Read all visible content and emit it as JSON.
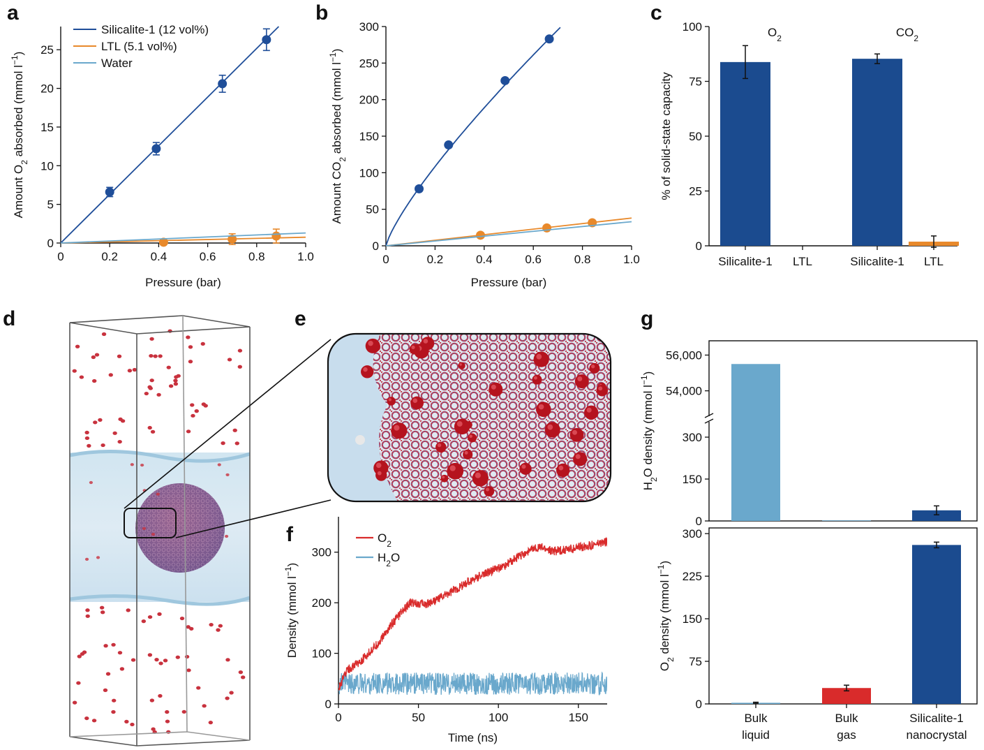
{
  "panels": {
    "a": "a",
    "b": "b",
    "c": "c",
    "d": "d",
    "e": "e",
    "f": "f",
    "g": "g"
  },
  "colors": {
    "navy": "#1f4e99",
    "orange": "#e8892b",
    "lightblue": "#6aa8cc",
    "red": "#d92b2b",
    "darkblue": "#1b4b8f"
  },
  "chart_data": [
    {
      "id": "a",
      "type": "scatter",
      "xlabel": "Pressure (bar)",
      "ylabel_parts": [
        "Amount O",
        "2",
        " absorbed (mmol l",
        "−1",
        ")"
      ],
      "xlim": [
        0,
        1.0
      ],
      "ylim": [
        0,
        28
      ],
      "xticks": [
        "0",
        "0.2",
        "0.4",
        "0.6",
        "0.8",
        "1.0"
      ],
      "yticks": [
        "0",
        "5",
        "10",
        "15",
        "20",
        "25"
      ],
      "legend_position": "top-left",
      "series": [
        {
          "name": "Silicalite-1 (12 vol%)",
          "color": "#1f4e99",
          "points": [
            {
              "x": 0.2,
              "y": 6.6,
              "err": 0.6
            },
            {
              "x": 0.39,
              "y": 12.2,
              "err": 0.8
            },
            {
              "x": 0.66,
              "y": 20.6,
              "err": 1.1
            },
            {
              "x": 0.84,
              "y": 26.3,
              "err": 1.4
            }
          ],
          "fit": [
            [
              0,
              0
            ],
            [
              0.89,
              28
            ]
          ]
        },
        {
          "name": "LTL (5.1 vol%)",
          "color": "#e8892b",
          "points": [
            {
              "x": 0.42,
              "y": 0.1,
              "err": 0.3
            },
            {
              "x": 0.7,
              "y": 0.5,
              "err": 0.7
            },
            {
              "x": 0.88,
              "y": 0.9,
              "err": 0.9
            }
          ],
          "fit": [
            [
              0,
              0
            ],
            [
              1.0,
              0.75
            ]
          ]
        },
        {
          "name": "Water",
          "color": "#6aa8cc",
          "points": [],
          "fit": [
            [
              0,
              0
            ],
            [
              1.0,
              1.3
            ]
          ]
        }
      ]
    },
    {
      "id": "b",
      "type": "scatter",
      "xlabel": "Pressure (bar)",
      "ylabel_parts": [
        "Amount CO",
        "2",
        " absorbed (mmol l",
        "−1",
        ")"
      ],
      "xlim": [
        0,
        1.0
      ],
      "ylim": [
        0,
        300
      ],
      "xticks": [
        "0",
        "0.2",
        "0.4",
        "0.6",
        "0.8",
        "1.0"
      ],
      "yticks": [
        "0",
        "50",
        "100",
        "150",
        "200",
        "250",
        "300"
      ],
      "series": [
        {
          "name": "Silicalite-1",
          "color": "#1f4e99",
          "points": [
            {
              "x": 0.135,
              "y": 78
            },
            {
              "x": 0.255,
              "y": 138
            },
            {
              "x": 0.485,
              "y": 226
            },
            {
              "x": 0.665,
              "y": 283
            }
          ],
          "curve_exponent": 0.8,
          "curve_scale": 393,
          "curve_xmax": 0.71
        },
        {
          "name": "LTL",
          "color": "#e8892b",
          "points": [
            {
              "x": 0.385,
              "y": 14.5
            },
            {
              "x": 0.655,
              "y": 24.5
            },
            {
              "x": 0.84,
              "y": 31.5
            }
          ],
          "fit": [
            [
              0,
              0
            ],
            [
              1.0,
              38
            ]
          ]
        },
        {
          "name": "Water",
          "color": "#6aa8cc",
          "points": [],
          "fit": [
            [
              0,
              0
            ],
            [
              1.0,
              33
            ]
          ]
        }
      ]
    },
    {
      "id": "c",
      "type": "bar",
      "ylabel": "% of solid-state capacity",
      "ylim": [
        0,
        100
      ],
      "yticks": [
        "0",
        "25",
        "50",
        "75",
        "100"
      ],
      "groups": [
        {
          "label_main": "O",
          "label_sub": "2"
        },
        {
          "label_main": "CO",
          "label_sub": "2"
        }
      ],
      "categories": [
        "Silicalite-1",
        "LTL",
        "Silicalite-1",
        "LTL"
      ],
      "values": [
        83.8,
        0,
        85.3,
        1.9
      ],
      "errors": [
        7.5,
        0,
        2.2,
        2.6
      ],
      "bar_colors": [
        "#1b4b8f",
        "#1b4b8f",
        "#1b4b8f",
        "#e8892b"
      ]
    },
    {
      "id": "f",
      "type": "line",
      "xlabel": "Time (ns)",
      "ylabel_parts": [
        "Density (mmol l",
        "−1",
        ")"
      ],
      "xlim": [
        0,
        168
      ],
      "ylim": [
        0,
        370
      ],
      "xticks": [
        "0",
        "50",
        "100",
        "150"
      ],
      "yticks": [
        "0",
        "100",
        "200",
        "300"
      ],
      "series": [
        {
          "name_main": "O",
          "name_sub": "2",
          "color": "#d92b2b",
          "trend": [
            [
              0,
              30
            ],
            [
              5,
              65
            ],
            [
              15,
              88
            ],
            [
              25,
              120
            ],
            [
              35,
              165
            ],
            [
              45,
              200
            ],
            [
              55,
              198
            ],
            [
              65,
              212
            ],
            [
              75,
              230
            ],
            [
              85,
              248
            ],
            [
              95,
              262
            ],
            [
              105,
              275
            ],
            [
              115,
              296
            ],
            [
              125,
              310
            ],
            [
              135,
              302
            ],
            [
              145,
              306
            ],
            [
              155,
              312
            ],
            [
              168,
              320
            ]
          ]
        },
        {
          "name_main": "H",
          "name_sub": "2",
          "name_tail": "O",
          "color": "#6aa8cc",
          "trend": [
            [
              0,
              40
            ],
            [
              168,
              40
            ]
          ],
          "noise": 22
        }
      ]
    },
    {
      "id": "g",
      "type": "bar",
      "categories": [
        [
          "Bulk",
          "liquid"
        ],
        [
          "Bulk",
          "gas"
        ],
        [
          "Silicalite-1",
          "nanocrystal"
        ]
      ],
      "top": {
        "ylabel_parts": [
          "H",
          "2",
          "O density (mmol l",
          "−1",
          ")"
        ],
        "upper_ylim": [
          52500,
          56800
        ],
        "upper_yticks": [
          "54,000",
          "56,000"
        ],
        "lower_ylim": [
          0,
          360
        ],
        "lower_yticks": [
          "0",
          "150",
          "300"
        ],
        "values": [
          55500,
          2,
          38
        ],
        "errors": [
          0,
          0,
          16
        ],
        "bar_colors": [
          "#6aa8cc",
          "#6aa8cc",
          "#1b4b8f"
        ]
      },
      "bottom": {
        "ylabel_parts": [
          "O",
          "2",
          " density (mmol l",
          "−1",
          ")"
        ],
        "ylim": [
          0,
          310
        ],
        "yticks": [
          "0",
          "75",
          "150",
          "225",
          "300"
        ],
        "values": [
          2,
          28,
          280
        ],
        "errors": [
          1,
          5,
          5
        ],
        "bar_colors": [
          "#6aa8cc",
          "#d92b2b",
          "#1b4b8f"
        ]
      }
    }
  ]
}
